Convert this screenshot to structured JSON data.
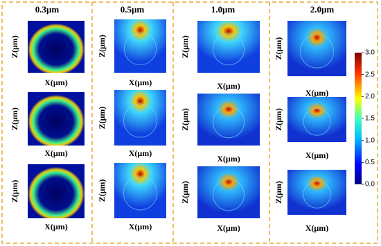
{
  "columns": [
    {
      "title": "0.3μm",
      "panels": [
        {
          "x_label": "X(μm)",
          "z_label": "Z(μm)"
        },
        {
          "x_label": "X(μm)",
          "z_label": "Z(μm)"
        },
        {
          "x_label": "X(μm)",
          "z_label": "Z(μm)"
        }
      ]
    },
    {
      "title": "0.5μm",
      "panels": [
        {
          "x_label": "X(μm)",
          "z_label": "Z(μm)"
        },
        {
          "x_label": "X(μm)",
          "z_label": "Z(μm)"
        },
        {
          "x_label": "X(μm)",
          "z_label": "Z(μm)"
        }
      ]
    },
    {
      "title": "1.0μm",
      "panels": [
        {
          "x_label": "X(μm)",
          "z_label": "Z(μm)"
        },
        {
          "x_label": "X(μm)",
          "z_label": "Z(μm)"
        },
        {
          "x_label": "X(μm)",
          "z_label": "Z(μm)"
        }
      ]
    },
    {
      "title": "2.0μm",
      "panels": [
        {
          "x_label": "X(μm)",
          "z_label": "Z(μm)"
        },
        {
          "x_label": "X(μm)",
          "z_label": "Z(μm)"
        },
        {
          "x_label": "X(μm)",
          "z_label": "Z(μm)"
        }
      ]
    }
  ],
  "colorbar": {
    "ticks": [
      "3.0",
      "2.5",
      "2.0",
      "1.5",
      "1.0",
      "0.5",
      "0.0"
    ]
  }
}
